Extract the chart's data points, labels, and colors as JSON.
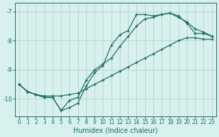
{
  "xlabel": "Humidex (Indice chaleur)",
  "ylabel": "",
  "bg_color": "#d8f0ee",
  "grid_color": "#b8d8d4",
  "line_color": "#1a6b60",
  "xlim": [
    -0.5,
    23.5
  ],
  "ylim": [
    -10.6,
    -6.7
  ],
  "yticks": [
    -10,
    -9,
    -8,
    -7
  ],
  "xticks": [
    0,
    1,
    2,
    3,
    4,
    5,
    6,
    7,
    8,
    9,
    10,
    11,
    12,
    13,
    14,
    15,
    16,
    17,
    18,
    19,
    20,
    21,
    22,
    23
  ],
  "curve1_x": [
    0,
    1,
    2,
    3,
    4,
    5,
    6,
    7,
    8,
    9,
    10,
    11,
    12,
    13,
    14,
    15,
    16,
    17,
    18,
    19,
    20,
    21,
    22,
    23
  ],
  "curve1_y": [
    -9.5,
    -9.75,
    -9.85,
    -9.9,
    -9.9,
    -9.9,
    -9.85,
    -9.8,
    -9.65,
    -9.5,
    -9.35,
    -9.2,
    -9.05,
    -8.9,
    -8.75,
    -8.6,
    -8.45,
    -8.3,
    -8.15,
    -8.0,
    -7.9,
    -7.9,
    -7.95,
    -7.95
  ],
  "curve2_x": [
    0,
    1,
    2,
    3,
    4,
    5,
    6,
    7,
    8,
    9,
    10,
    11,
    12,
    13,
    14,
    15,
    16,
    17,
    18,
    19,
    20,
    21,
    22,
    23
  ],
  "curve2_y": [
    -9.5,
    -9.75,
    -9.85,
    -9.95,
    -9.95,
    -10.4,
    -10.3,
    -10.15,
    -9.55,
    -9.1,
    -8.85,
    -8.15,
    -7.8,
    -7.65,
    -7.1,
    -7.1,
    -7.15,
    -7.1,
    -7.05,
    -7.15,
    -7.4,
    -7.75,
    -7.75,
    -7.85
  ],
  "curve3_x": [
    0,
    1,
    2,
    3,
    4,
    5,
    6,
    7,
    8,
    9,
    10,
    11,
    12,
    13,
    14,
    15,
    16,
    17,
    18,
    19,
    20,
    21,
    22,
    23
  ],
  "curve3_y": [
    -9.5,
    -9.75,
    -9.85,
    -9.95,
    -9.95,
    -10.4,
    -10.05,
    -9.95,
    -9.35,
    -9.0,
    -8.8,
    -8.6,
    -8.2,
    -7.85,
    -7.5,
    -7.25,
    -7.2,
    -7.1,
    -7.05,
    -7.2,
    -7.35,
    -7.6,
    -7.7,
    -7.85
  ]
}
